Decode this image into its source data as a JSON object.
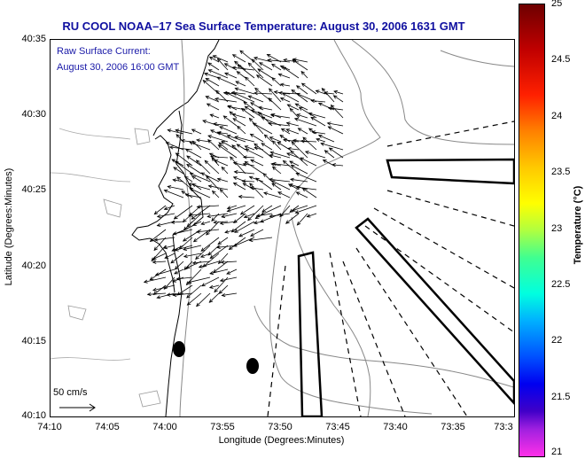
{
  "title": "RU COOL  NOAA–17  Sea Surface Temperature:  August 30, 2006 1631 GMT",
  "raw_label_line1": "Raw Surface Current:",
  "raw_label_line2": "August 30, 2006 16:00 GMT",
  "ylabel": "Latitude (Degrees:Minutes)",
  "xlabel": "Longitude (Degrees:Minutes)",
  "yticks": [
    "40:35",
    "40:30",
    "40:25",
    "40:20",
    "40:15",
    "40:10"
  ],
  "xticks": [
    "74:10",
    "74:05",
    "74:00",
    "73:55",
    "73:50",
    "73:45",
    "73:40",
    "73:35",
    "73:3"
  ],
  "colorbar": {
    "label": "Temperature (°C)",
    "ticks": [
      "25",
      "24.5",
      "24",
      "23.5",
      "23",
      "22.5",
      "22",
      "21.5",
      "21"
    ],
    "min": 21,
    "max": 25
  },
  "scale": {
    "label": "50 cm/s"
  }
}
